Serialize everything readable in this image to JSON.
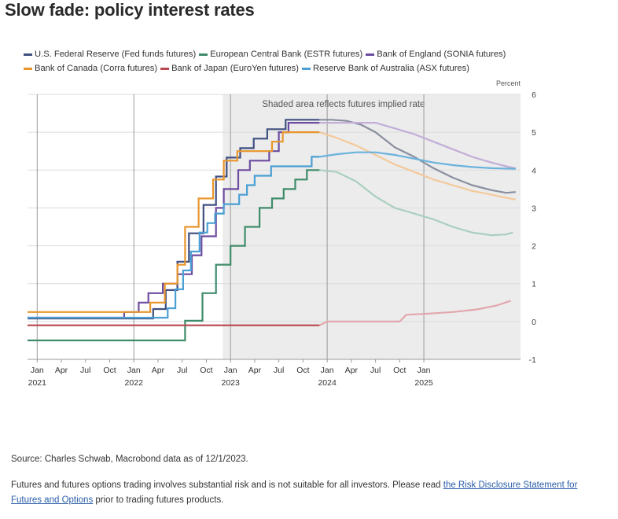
{
  "title": "Slow fade: policy interest rates",
  "chart_data": {
    "type": "line",
    "title": "Slow fade: policy interest rates",
    "ylabel": "Percent",
    "ylim": [
      -1,
      6
    ],
    "y_ticks": [
      -1,
      0,
      1,
      2,
      3,
      4,
      5,
      6
    ],
    "x_range": [
      2020.9,
      2026.0
    ],
    "x_tick_labels": [
      {
        "x": 2021.0,
        "label": "Jan"
      },
      {
        "x": 2021.25,
        "label": "Apr"
      },
      {
        "x": 2021.5,
        "label": "Jul"
      },
      {
        "x": 2021.75,
        "label": "Oct"
      },
      {
        "x": 2022.0,
        "label": "Jan"
      },
      {
        "x": 2022.25,
        "label": "Apr"
      },
      {
        "x": 2022.5,
        "label": "Jul"
      },
      {
        "x": 2022.75,
        "label": "Oct"
      },
      {
        "x": 2023.0,
        "label": "Jan"
      },
      {
        "x": 2023.25,
        "label": "Apr"
      },
      {
        "x": 2023.5,
        "label": "Jul"
      },
      {
        "x": 2023.75,
        "label": "Oct"
      },
      {
        "x": 2024.0,
        "label": "Jan"
      },
      {
        "x": 2024.25,
        "label": "Apr"
      },
      {
        "x": 2024.5,
        "label": "Jul"
      },
      {
        "x": 2024.75,
        "label": "Oct"
      },
      {
        "x": 2025.0,
        "label": "Jan"
      }
    ],
    "x_year_labels": [
      {
        "x": 2021.0,
        "label": "2021"
      },
      {
        "x": 2022.0,
        "label": "2022"
      },
      {
        "x": 2023.0,
        "label": "2023"
      },
      {
        "x": 2024.0,
        "label": "2024"
      },
      {
        "x": 2025.0,
        "label": "2025"
      }
    ],
    "vertical_gridlines_x": [
      2021.0,
      2022.0,
      2023.0,
      2024.0,
      2025.0
    ],
    "shaded_region": {
      "x_start": 2022.92,
      "x_end": 2026.0,
      "label": "Shaded area reflects futures implied rate"
    },
    "legend_position": "top",
    "series": [
      {
        "name": "U.S. Federal Reserve (Fed funds futures)",
        "color": "#3f4f80",
        "futures_color": "#8a8fa0",
        "points": [
          [
            2020.9,
            0.08
          ],
          [
            2022.2,
            0.08
          ],
          [
            2022.2,
            0.33
          ],
          [
            2022.33,
            0.33
          ],
          [
            2022.33,
            0.83
          ],
          [
            2022.45,
            0.83
          ],
          [
            2022.45,
            1.58
          ],
          [
            2022.57,
            1.58
          ],
          [
            2022.57,
            2.33
          ],
          [
            2022.72,
            2.33
          ],
          [
            2022.72,
            3.08
          ],
          [
            2022.85,
            3.08
          ],
          [
            2022.85,
            3.83
          ],
          [
            2022.96,
            3.83
          ],
          [
            2022.96,
            4.33
          ],
          [
            2023.1,
            4.33
          ],
          [
            2023.1,
            4.58
          ],
          [
            2023.24,
            4.58
          ],
          [
            2023.24,
            4.83
          ],
          [
            2023.38,
            4.83
          ],
          [
            2023.38,
            5.08
          ],
          [
            2023.57,
            5.08
          ],
          [
            2023.57,
            5.33
          ],
          [
            2023.92,
            5.33
          ]
        ],
        "futures": [
          [
            2023.92,
            5.33
          ],
          [
            2024.05,
            5.33
          ],
          [
            2024.2,
            5.3
          ],
          [
            2024.35,
            5.2
          ],
          [
            2024.5,
            5.0
          ],
          [
            2024.7,
            4.6
          ],
          [
            2024.9,
            4.35
          ],
          [
            2025.1,
            4.05
          ],
          [
            2025.3,
            3.8
          ],
          [
            2025.5,
            3.6
          ],
          [
            2025.7,
            3.47
          ],
          [
            2025.85,
            3.4
          ],
          [
            2025.95,
            3.42
          ]
        ]
      },
      {
        "name": "European Central Bank (ESTR futures)",
        "color": "#3e8c6a",
        "futures_color": "#a9cfbe",
        "points": [
          [
            2020.9,
            -0.5
          ],
          [
            2022.53,
            -0.5
          ],
          [
            2022.53,
            0.02
          ],
          [
            2022.71,
            0.02
          ],
          [
            2022.71,
            0.75
          ],
          [
            2022.85,
            0.75
          ],
          [
            2022.85,
            1.5
          ],
          [
            2023.0,
            1.5
          ],
          [
            2023.0,
            2.0
          ],
          [
            2023.15,
            2.0
          ],
          [
            2023.15,
            2.5
          ],
          [
            2023.3,
            2.5
          ],
          [
            2023.3,
            3.0
          ],
          [
            2023.43,
            3.0
          ],
          [
            2023.43,
            3.25
          ],
          [
            2023.55,
            3.25
          ],
          [
            2023.55,
            3.5
          ],
          [
            2023.67,
            3.5
          ],
          [
            2023.67,
            3.75
          ],
          [
            2023.79,
            3.75
          ],
          [
            2023.79,
            4.0
          ],
          [
            2023.92,
            4.0
          ]
        ],
        "futures": [
          [
            2023.92,
            4.0
          ],
          [
            2024.1,
            3.95
          ],
          [
            2024.3,
            3.7
          ],
          [
            2024.5,
            3.3
          ],
          [
            2024.7,
            3.0
          ],
          [
            2024.9,
            2.85
          ],
          [
            2025.1,
            2.7
          ],
          [
            2025.3,
            2.5
          ],
          [
            2025.5,
            2.35
          ],
          [
            2025.7,
            2.28
          ],
          [
            2025.85,
            2.3
          ],
          [
            2025.92,
            2.35
          ]
        ]
      },
      {
        "name": "Bank of England (SONIA futures)",
        "color": "#6c4ca0",
        "futures_color": "#c2aed8",
        "points": [
          [
            2020.9,
            0.1
          ],
          [
            2021.9,
            0.1
          ],
          [
            2021.9,
            0.25
          ],
          [
            2022.05,
            0.25
          ],
          [
            2022.05,
            0.5
          ],
          [
            2022.15,
            0.5
          ],
          [
            2022.15,
            0.75
          ],
          [
            2022.3,
            0.75
          ],
          [
            2022.3,
            1.0
          ],
          [
            2022.45,
            1.0
          ],
          [
            2022.45,
            1.25
          ],
          [
            2022.6,
            1.25
          ],
          [
            2022.6,
            1.75
          ],
          [
            2022.7,
            1.75
          ],
          [
            2022.7,
            2.25
          ],
          [
            2022.85,
            2.25
          ],
          [
            2022.85,
            3.0
          ],
          [
            2022.93,
            3.0
          ],
          [
            2022.93,
            3.5
          ],
          [
            2023.08,
            3.5
          ],
          [
            2023.08,
            4.0
          ],
          [
            2023.2,
            4.0
          ],
          [
            2023.2,
            4.25
          ],
          [
            2023.4,
            4.25
          ],
          [
            2023.4,
            4.5
          ],
          [
            2023.5,
            4.5
          ],
          [
            2023.5,
            5.0
          ],
          [
            2023.6,
            5.0
          ],
          [
            2023.6,
            5.25
          ],
          [
            2023.92,
            5.25
          ]
        ],
        "futures": [
          [
            2023.92,
            5.25
          ],
          [
            2024.2,
            5.25
          ],
          [
            2024.5,
            5.25
          ],
          [
            2024.7,
            5.1
          ],
          [
            2024.9,
            4.95
          ],
          [
            2025.1,
            4.75
          ],
          [
            2025.3,
            4.55
          ],
          [
            2025.5,
            4.35
          ],
          [
            2025.7,
            4.2
          ],
          [
            2025.85,
            4.1
          ],
          [
            2025.95,
            4.05
          ]
        ]
      },
      {
        "name": "Bank of Canada (Corra futures)",
        "color": "#e8962c",
        "futures_color": "#f3c99a",
        "points": [
          [
            2020.9,
            0.25
          ],
          [
            2022.17,
            0.25
          ],
          [
            2022.17,
            0.5
          ],
          [
            2022.32,
            0.5
          ],
          [
            2022.32,
            1.0
          ],
          [
            2022.45,
            1.0
          ],
          [
            2022.45,
            1.5
          ],
          [
            2022.53,
            1.5
          ],
          [
            2022.53,
            2.5
          ],
          [
            2022.67,
            2.5
          ],
          [
            2022.67,
            3.25
          ],
          [
            2022.82,
            3.25
          ],
          [
            2022.82,
            3.75
          ],
          [
            2022.93,
            3.75
          ],
          [
            2022.93,
            4.25
          ],
          [
            2023.07,
            4.25
          ],
          [
            2023.07,
            4.5
          ],
          [
            2023.43,
            4.5
          ],
          [
            2023.43,
            4.75
          ],
          [
            2023.54,
            4.75
          ],
          [
            2023.54,
            5.0
          ],
          [
            2023.92,
            5.0
          ]
        ],
        "futures": [
          [
            2023.92,
            5.0
          ],
          [
            2024.1,
            4.85
          ],
          [
            2024.3,
            4.65
          ],
          [
            2024.5,
            4.4
          ],
          [
            2024.7,
            4.15
          ],
          [
            2024.9,
            3.95
          ],
          [
            2025.1,
            3.75
          ],
          [
            2025.3,
            3.6
          ],
          [
            2025.5,
            3.45
          ],
          [
            2025.7,
            3.35
          ],
          [
            2025.85,
            3.27
          ],
          [
            2025.95,
            3.22
          ]
        ]
      },
      {
        "name": "Bank of Japan (EuroYen futures)",
        "color": "#b8474f",
        "futures_color": "#e2a7ad",
        "points": [
          [
            2020.9,
            -0.1
          ],
          [
            2023.92,
            -0.1
          ]
        ],
        "futures": [
          [
            2023.92,
            -0.1
          ],
          [
            2024.0,
            0.0
          ],
          [
            2024.4,
            0.0
          ],
          [
            2024.6,
            0.0
          ],
          [
            2024.75,
            0.0
          ],
          [
            2024.82,
            0.18
          ],
          [
            2025.0,
            0.2
          ],
          [
            2025.3,
            0.25
          ],
          [
            2025.55,
            0.32
          ],
          [
            2025.75,
            0.42
          ],
          [
            2025.9,
            0.55
          ]
        ]
      },
      {
        "name": "Reserve Bank of Australia (ASX futures)",
        "color": "#4a9fd4",
        "futures_color": "#6bb3dd",
        "points": [
          [
            2020.9,
            0.1
          ],
          [
            2022.35,
            0.1
          ],
          [
            2022.35,
            0.35
          ],
          [
            2022.43,
            0.35
          ],
          [
            2022.43,
            0.85
          ],
          [
            2022.51,
            0.85
          ],
          [
            2022.51,
            1.35
          ],
          [
            2022.59,
            1.35
          ],
          [
            2022.59,
            1.85
          ],
          [
            2022.68,
            1.85
          ],
          [
            2022.68,
            2.35
          ],
          [
            2022.76,
            2.35
          ],
          [
            2022.76,
            2.6
          ],
          [
            2022.84,
            2.6
          ],
          [
            2022.84,
            2.85
          ],
          [
            2022.93,
            2.85
          ],
          [
            2022.93,
            3.1
          ],
          [
            2023.09,
            3.1
          ],
          [
            2023.09,
            3.35
          ],
          [
            2023.17,
            3.35
          ],
          [
            2023.17,
            3.6
          ],
          [
            2023.25,
            3.6
          ],
          [
            2023.25,
            3.85
          ],
          [
            2023.42,
            3.85
          ],
          [
            2023.42,
            4.1
          ],
          [
            2023.84,
            4.1
          ],
          [
            2023.84,
            4.35
          ],
          [
            2023.92,
            4.35
          ]
        ],
        "futures": [
          [
            2023.92,
            4.35
          ],
          [
            2024.1,
            4.42
          ],
          [
            2024.3,
            4.47
          ],
          [
            2024.5,
            4.47
          ],
          [
            2024.7,
            4.4
          ],
          [
            2024.9,
            4.3
          ],
          [
            2025.1,
            4.2
          ],
          [
            2025.3,
            4.13
          ],
          [
            2025.5,
            4.08
          ],
          [
            2025.7,
            4.05
          ],
          [
            2025.85,
            4.04
          ],
          [
            2025.95,
            4.03
          ]
        ]
      }
    ]
  },
  "source": "Source: Charles Schwab, Macrobond data as of 12/1/2023.",
  "disclaimer": {
    "text_before": "Futures and futures options trading involves substantial risk and is not suitable for all investors. Please read ",
    "link_text": "the Risk Disclosure Statement for Futures and Options",
    "text_after": " prior to trading futures products."
  }
}
